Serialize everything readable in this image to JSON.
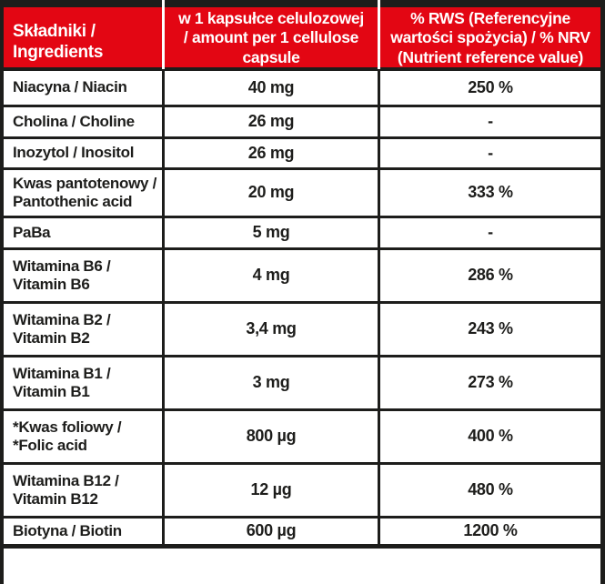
{
  "table": {
    "title": "supplement-facts-table",
    "colors": {
      "header_bg": "#e30613",
      "header_text": "#ffffff",
      "border": "#1d1d1b",
      "body_text": "#1d1d1b",
      "body_bg": "#ffffff"
    },
    "header": {
      "ingredients": "Składniki /\nIngredients",
      "amount": "w 1 kapsułce celulozowej\n/ amount per 1 cellulose\ncapsule",
      "rws": "% RWS (Referencyjne\nwartości spożycia) / % NRV\n(Nutrient reference value)"
    },
    "rows": [
      {
        "ingredient": "Niacyna / Niacin",
        "amount": "40 mg",
        "rws": "250 %"
      },
      {
        "ingredient": "Cholina / Choline",
        "amount": "26 mg",
        "rws": "-"
      },
      {
        "ingredient": "Inozytol / Inositol",
        "amount": "26 mg",
        "rws": "-"
      },
      {
        "ingredient": "Kwas pantotenowy /\nPantothenic acid",
        "amount": "20 mg",
        "rws": "333 %"
      },
      {
        "ingredient": "PaBa",
        "amount": "5 mg",
        "rws": "-"
      },
      {
        "ingredient": "Witamina B6 /\nVitamin B6",
        "amount": "4 mg",
        "rws": "286 %"
      },
      {
        "ingredient": "Witamina B2 /\nVitamin B2",
        "amount": "3,4 mg",
        "rws": "243 %"
      },
      {
        "ingredient": "Witamina B1 /\nVitamin B1",
        "amount": "3 mg",
        "rws": "273 %"
      },
      {
        "ingredient": "*Kwas foliowy /\n*Folic acid",
        "amount": "800 µg",
        "rws": "400 %"
      },
      {
        "ingredient": "Witamina B12 /\nVitamin B12",
        "amount": "12 µg",
        "rws": "480 %"
      },
      {
        "ingredient": "Biotyna / Biotin",
        "amount": "600 µg",
        "rws": "1200 %"
      }
    ]
  }
}
